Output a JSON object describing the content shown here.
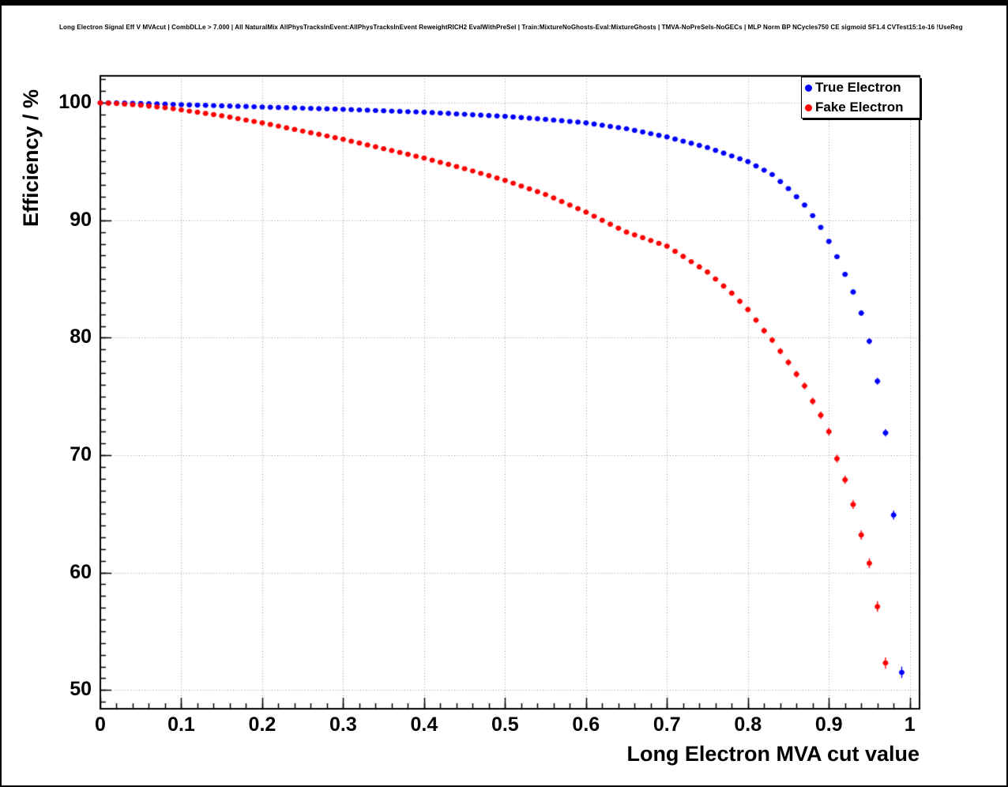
{
  "window": {
    "border_color": "#000000",
    "background": "#ffffff"
  },
  "title": "Long Electron Signal Eff V MVAcut | CombDLLe > 7.000 | All NaturalMix AllPhysTracksInEvent:AllPhysTracksInEvent ReweightRICH2 EvalWithPreSel | Train:MixtureNoGhosts-Eval:MixtureGhosts | TMVA-NoPreSels-NoGECs | MLP Norm BP NCycles750 CE sigmoid SF1.4 CVTest15:1e-16 !UseReg",
  "chart_data": {
    "type": "scatter",
    "title": "Long Electron Signal Eff V MVAcut",
    "xlabel": "Long Electron MVA cut value",
    "ylabel": "Efficiency / %",
    "xlim": [
      0,
      1.012
    ],
    "ylim": [
      48.4,
      102.3
    ],
    "xticks": [
      0,
      0.1,
      0.2,
      0.3,
      0.4,
      0.5,
      0.6,
      0.7,
      0.8,
      0.9,
      1
    ],
    "xtick_labels": [
      "0",
      "0.1",
      "0.2",
      "0.3",
      "0.4",
      "0.5",
      "0.6",
      "0.7",
      "0.8",
      "0.9",
      "1"
    ],
    "yticks": [
      50,
      60,
      70,
      80,
      90,
      100
    ],
    "ytick_labels": [
      "50",
      "60",
      "70",
      "80",
      "90",
      "100"
    ],
    "grid": true,
    "grid_style": "dotted",
    "grid_color": "#999999",
    "legend_position": "top-right",
    "marker": {
      "shape": "circle",
      "radius_px": 3.2
    },
    "error_model": {
      "base": 0.1,
      "per_unit_below_100": 0.008,
      "xerr_half": 0.0035
    },
    "series": [
      {
        "name": "True Electron",
        "color": "#0000ff",
        "x_start": 0,
        "x_step": 0.01,
        "values": [
          100.0,
          100.0,
          100.0,
          99.98,
          99.97,
          99.95,
          99.93,
          99.91,
          99.89,
          99.87,
          99.85,
          99.83,
          99.81,
          99.79,
          99.77,
          99.75,
          99.73,
          99.71,
          99.69,
          99.67,
          99.65,
          99.63,
          99.61,
          99.59,
          99.57,
          99.55,
          99.53,
          99.51,
          99.49,
          99.47,
          99.45,
          99.43,
          99.4,
          99.38,
          99.35,
          99.33,
          99.3,
          99.28,
          99.25,
          99.23,
          99.2,
          99.17,
          99.13,
          99.1,
          99.06,
          99.03,
          98.99,
          98.96,
          98.92,
          98.89,
          98.85,
          98.8,
          98.75,
          98.7,
          98.65,
          98.6,
          98.54,
          98.48,
          98.42,
          98.36,
          98.3,
          98.2,
          98.1,
          98.0,
          97.9,
          97.8,
          97.66,
          97.52,
          97.38,
          97.24,
          97.1,
          96.92,
          96.74,
          96.56,
          96.38,
          96.2,
          95.96,
          95.72,
          95.48,
          95.24,
          95.0,
          94.63,
          94.27,
          93.9,
          93.3,
          92.7,
          92.0,
          91.3,
          90.4,
          89.4,
          88.2,
          86.9,
          85.4,
          83.9,
          82.1,
          79.7,
          76.3,
          71.9,
          64.9,
          51.5
        ]
      },
      {
        "name": "Fake Electron",
        "color": "#ff0000",
        "x_start": 0,
        "x_step": 0.01,
        "values": [
          100.0,
          99.98,
          99.95,
          99.9,
          99.85,
          99.8,
          99.73,
          99.66,
          99.59,
          99.5,
          99.4,
          99.3,
          99.2,
          99.1,
          99.0,
          98.9,
          98.78,
          98.66,
          98.54,
          98.42,
          98.3,
          98.16,
          98.02,
          97.88,
          97.74,
          97.6,
          97.46,
          97.32,
          97.18,
          97.04,
          96.9,
          96.74,
          96.58,
          96.42,
          96.26,
          96.1,
          95.94,
          95.78,
          95.62,
          95.46,
          95.3,
          95.12,
          94.94,
          94.76,
          94.58,
          94.4,
          94.2,
          94.0,
          93.8,
          93.6,
          93.4,
          93.16,
          92.92,
          92.68,
          92.44,
          92.2,
          91.9,
          91.6,
          91.3,
          91.0,
          90.7,
          90.35,
          90.0,
          89.67,
          89.33,
          89.0,
          88.76,
          88.52,
          88.28,
          88.04,
          87.8,
          87.36,
          86.92,
          86.48,
          86.04,
          85.6,
          85.0,
          84.4,
          83.8,
          83.1,
          82.4,
          81.5,
          80.6,
          79.8,
          78.85,
          77.9,
          76.9,
          75.9,
          74.6,
          73.4,
          72.0,
          69.7,
          67.9,
          65.8,
          63.2,
          60.8,
          57.1,
          52.3
        ]
      }
    ]
  }
}
